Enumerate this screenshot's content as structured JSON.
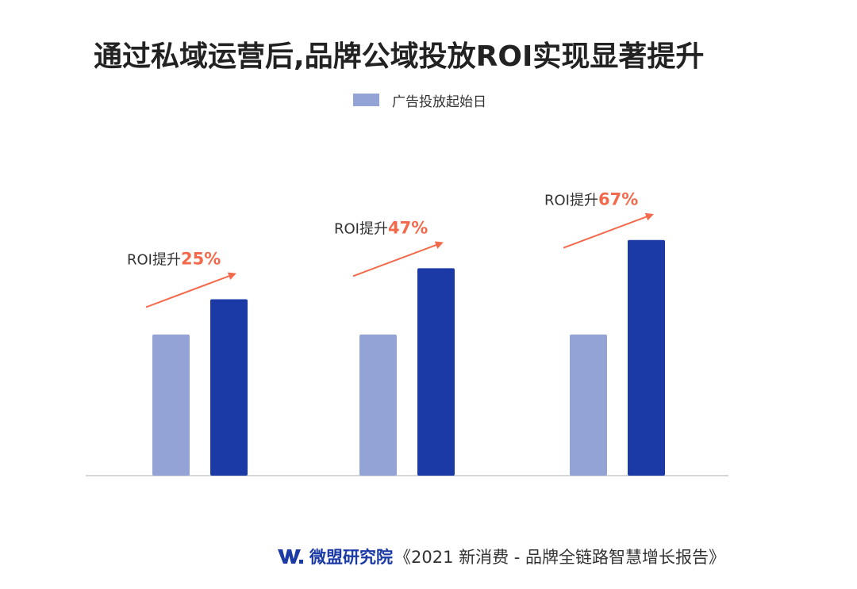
{
  "title": "通过私域运营后,品牌公域投放ROI实现显著提升",
  "legend": {
    "label": "广告投放起始日",
    "color": "#93a3d5"
  },
  "footer": {
    "logo_icon": "wm-logo-icon",
    "brand": "微盟研究院",
    "report": "《2021 新消费 - 品牌全链路智慧增长报告》"
  },
  "chart_data": {
    "type": "bar",
    "categories": [
      "",
      "",
      ""
    ],
    "series": [
      {
        "name": "广告投放起始日",
        "color": "#93a3d5",
        "values": [
          100,
          100,
          100
        ]
      },
      {
        "color": "#1b3aa6",
        "values": [
          125,
          147,
          167
        ]
      }
    ],
    "ylim": [
      0,
      180
    ],
    "grid": false,
    "legend_position": "top-center",
    "annotations": [
      {
        "prefix": "ROI提升",
        "value": "25%"
      },
      {
        "prefix": "ROI提升",
        "value": "47%"
      },
      {
        "prefix": "ROI提升",
        "value": "67%"
      }
    ],
    "annotation_value_color": "#f26a4b",
    "arrow_color": "#f26a4b"
  }
}
